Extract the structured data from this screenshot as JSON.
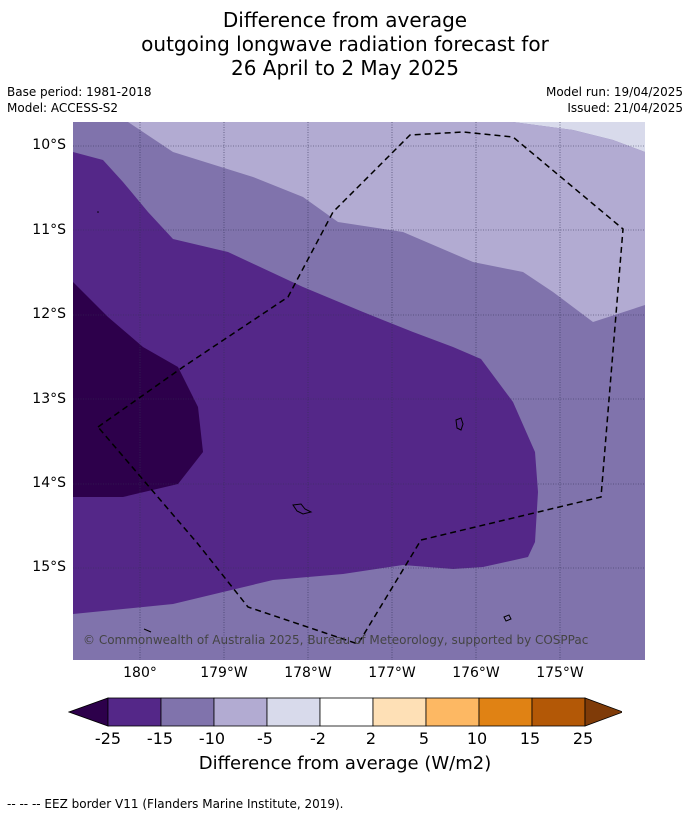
{
  "title": {
    "line1": "Difference from average",
    "line2": "outgoing longwave radiation forecast for",
    "line3": "26 April to 2 May 2025"
  },
  "meta": {
    "base_period": "Base period: 1981-2018",
    "model": "Model: ACCESS-S2",
    "model_run": "Model run: 19/04/2025",
    "issued": "Issued: 21/04/2025"
  },
  "map": {
    "lat_labels": [
      "10°S",
      "11°S",
      "12°S",
      "13°S",
      "14°S",
      "15°S"
    ],
    "lon_labels": [
      "180°",
      "179°W",
      "178°W",
      "177°W",
      "176°W",
      "175°W"
    ],
    "copyright": "© Commonwealth of Australia 2025, Bureau of Meteorology, supported by COSPPac",
    "colors": {
      "below_minus25": "#2d004b",
      "minus25_to_minus15": "#542788",
      "minus15_to_minus10": "#8073ac",
      "minus10_to_minus5": "#b2abd2",
      "minus5_to_minus2": "#d8daeb",
      "land_outline": "#000000"
    }
  },
  "colorbar": {
    "tick_labels": [
      "-25",
      "-15",
      "-10",
      "-5",
      "-2",
      "2",
      "5",
      "10",
      "15",
      "25"
    ],
    "colors": [
      "#2d004b",
      "#542788",
      "#8073ac",
      "#b2abd2",
      "#d8daeb",
      "#ffffff",
      "#fee0b6",
      "#fdb863",
      "#e08214",
      "#b35806",
      "#7f3b08"
    ],
    "title": "Difference from average (W/m2)"
  },
  "footer": "-- -- -- EEZ border V11 (Flanders Marine Institute, 2019)."
}
